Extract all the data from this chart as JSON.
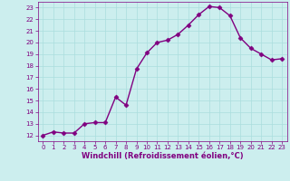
{
  "x": [
    0,
    1,
    2,
    3,
    4,
    5,
    6,
    7,
    8,
    9,
    10,
    11,
    12,
    13,
    14,
    15,
    16,
    17,
    18,
    19,
    20,
    21,
    22,
    23
  ],
  "y": [
    12.0,
    12.3,
    12.2,
    12.2,
    13.0,
    13.1,
    13.1,
    15.3,
    14.6,
    17.7,
    19.1,
    20.0,
    20.2,
    20.7,
    21.5,
    22.4,
    23.1,
    23.0,
    22.3,
    20.4,
    19.5,
    19.0,
    18.5,
    18.6
  ],
  "line_color": "#800080",
  "marker": "D",
  "marker_color": "#800080",
  "bg_color": "#cceeee",
  "grid_color": "#aadddd",
  "xlabel": "Windchill (Refroidissement éolien,°C)",
  "xlim": [
    -0.5,
    23.5
  ],
  "ylim": [
    11.5,
    23.5
  ],
  "yticks": [
    12,
    13,
    14,
    15,
    16,
    17,
    18,
    19,
    20,
    21,
    22,
    23
  ],
  "xticks": [
    0,
    1,
    2,
    3,
    4,
    5,
    6,
    7,
    8,
    9,
    10,
    11,
    12,
    13,
    14,
    15,
    16,
    17,
    18,
    19,
    20,
    21,
    22,
    23
  ],
  "tick_color": "#800080",
  "tick_fontsize": 5.0,
  "xlabel_fontsize": 6.0,
  "linewidth": 1.0,
  "markersize": 2.5
}
